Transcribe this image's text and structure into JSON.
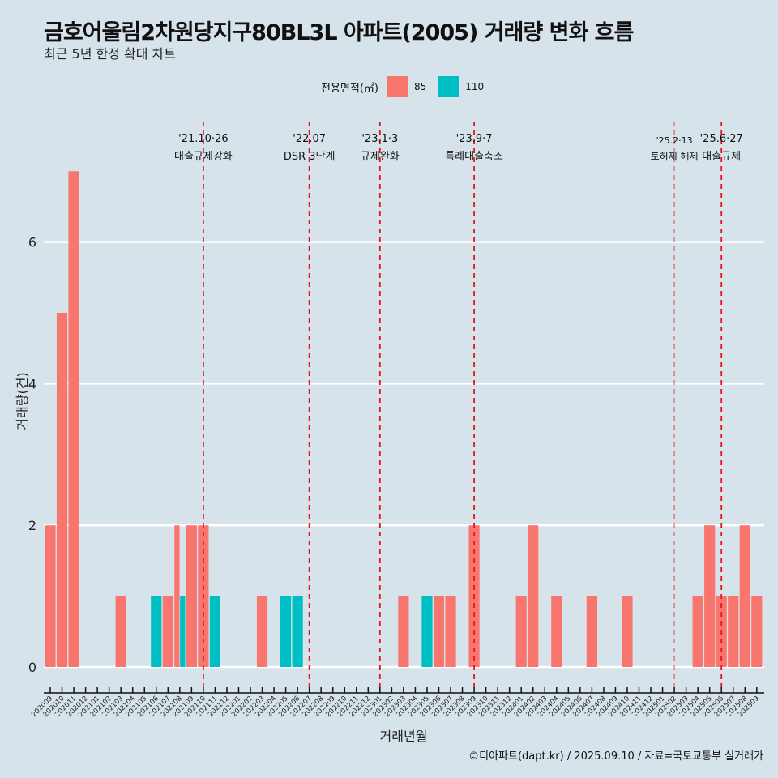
{
  "header": {
    "title": "금호어울림2차원당지구80BL3L 아파트(2005) 거래량 변화 흐름",
    "subtitle": "최근 5년 한정 확대 차트"
  },
  "legend": {
    "title": "전용면적(㎡)",
    "items": [
      {
        "label": "85",
        "color": "#f8766d"
      },
      {
        "label": "110",
        "color": "#00bfc4"
      }
    ]
  },
  "footer": {
    "credit": "©디아파트(dapt.kr) / 2025.09.10 / 자료=국토교통부 실거래가"
  },
  "chart_data": {
    "type": "bar",
    "title": "금호어울림2차원당지구80BL3L 아파트(2005) 거래량 변화 흐름",
    "subtitle": "최근 5년 한정 확대 차트",
    "xlabel": "거래년월",
    "ylabel": "거래량(건)",
    "ylim": [
      0,
      7
    ],
    "yticks": [
      0,
      2,
      4,
      6
    ],
    "grid": true,
    "legend_position": "top",
    "categories": [
      "202009",
      "202010",
      "202011",
      "202012",
      "202101",
      "202102",
      "202103",
      "202104",
      "202105",
      "202106",
      "202107",
      "202108",
      "202109",
      "202110",
      "202111",
      "202112",
      "202201",
      "202202",
      "202203",
      "202204",
      "202205",
      "202206",
      "202207",
      "202208",
      "202209",
      "202210",
      "202211",
      "202212",
      "202301",
      "202302",
      "202303",
      "202304",
      "202305",
      "202306",
      "202307",
      "202308",
      "202309",
      "202310",
      "202311",
      "202312",
      "202401",
      "202402",
      "202403",
      "202404",
      "202405",
      "202406",
      "202407",
      "202408",
      "202409",
      "202410",
      "202411",
      "202412",
      "202501",
      "202502",
      "202503",
      "202504",
      "202505",
      "202506",
      "202507",
      "202508",
      "202509"
    ],
    "series": [
      {
        "name": "85",
        "color": "#f8766d",
        "values": [
          2,
          5,
          7,
          0,
          0,
          0,
          1,
          0,
          0,
          0,
          1,
          2,
          2,
          2,
          0,
          0,
          0,
          0,
          1,
          0,
          0,
          0,
          0,
          0,
          0,
          0,
          0,
          0,
          0,
          0,
          1,
          0,
          0,
          1,
          1,
          0,
          2,
          0,
          0,
          0,
          1,
          2,
          0,
          1,
          0,
          0,
          1,
          0,
          0,
          1,
          0,
          0,
          0,
          0,
          0,
          1,
          2,
          1,
          1,
          2,
          1
        ]
      },
      {
        "name": "110",
        "color": "#00bfc4",
        "values": [
          0,
          0,
          0,
          0,
          0,
          0,
          0,
          0,
          0,
          1,
          0,
          1,
          0,
          0,
          1,
          0,
          0,
          0,
          0,
          0,
          1,
          1,
          0,
          0,
          0,
          0,
          0,
          0,
          0,
          0,
          0,
          0,
          1,
          0,
          0,
          0,
          0,
          0,
          0,
          0,
          0,
          0,
          0,
          0,
          0,
          0,
          0,
          0,
          0,
          0,
          0,
          0,
          0,
          0,
          0,
          0,
          0,
          0,
          0,
          0,
          0
        ]
      }
    ],
    "annotations": [
      {
        "month": "202110",
        "date": "'21.10·26",
        "label": "대출규제강화",
        "style": "bold"
      },
      {
        "month": "202207",
        "date": "'22.07",
        "label": "DSR 3단계",
        "style": "bold"
      },
      {
        "month": "202301",
        "date": "'23.1·3",
        "label": "규제완화",
        "style": "bold"
      },
      {
        "month": "202309",
        "date": "'23.9·7",
        "label": "특례대출축소",
        "style": "bold"
      },
      {
        "month": "202502",
        "date": "'25.2·13",
        "label": "토허제 해제",
        "style": "light"
      },
      {
        "month": "202506",
        "date": "'25.6·27",
        "label": "대출규제",
        "style": "bold"
      }
    ],
    "annotation_color": "#e8141b"
  }
}
